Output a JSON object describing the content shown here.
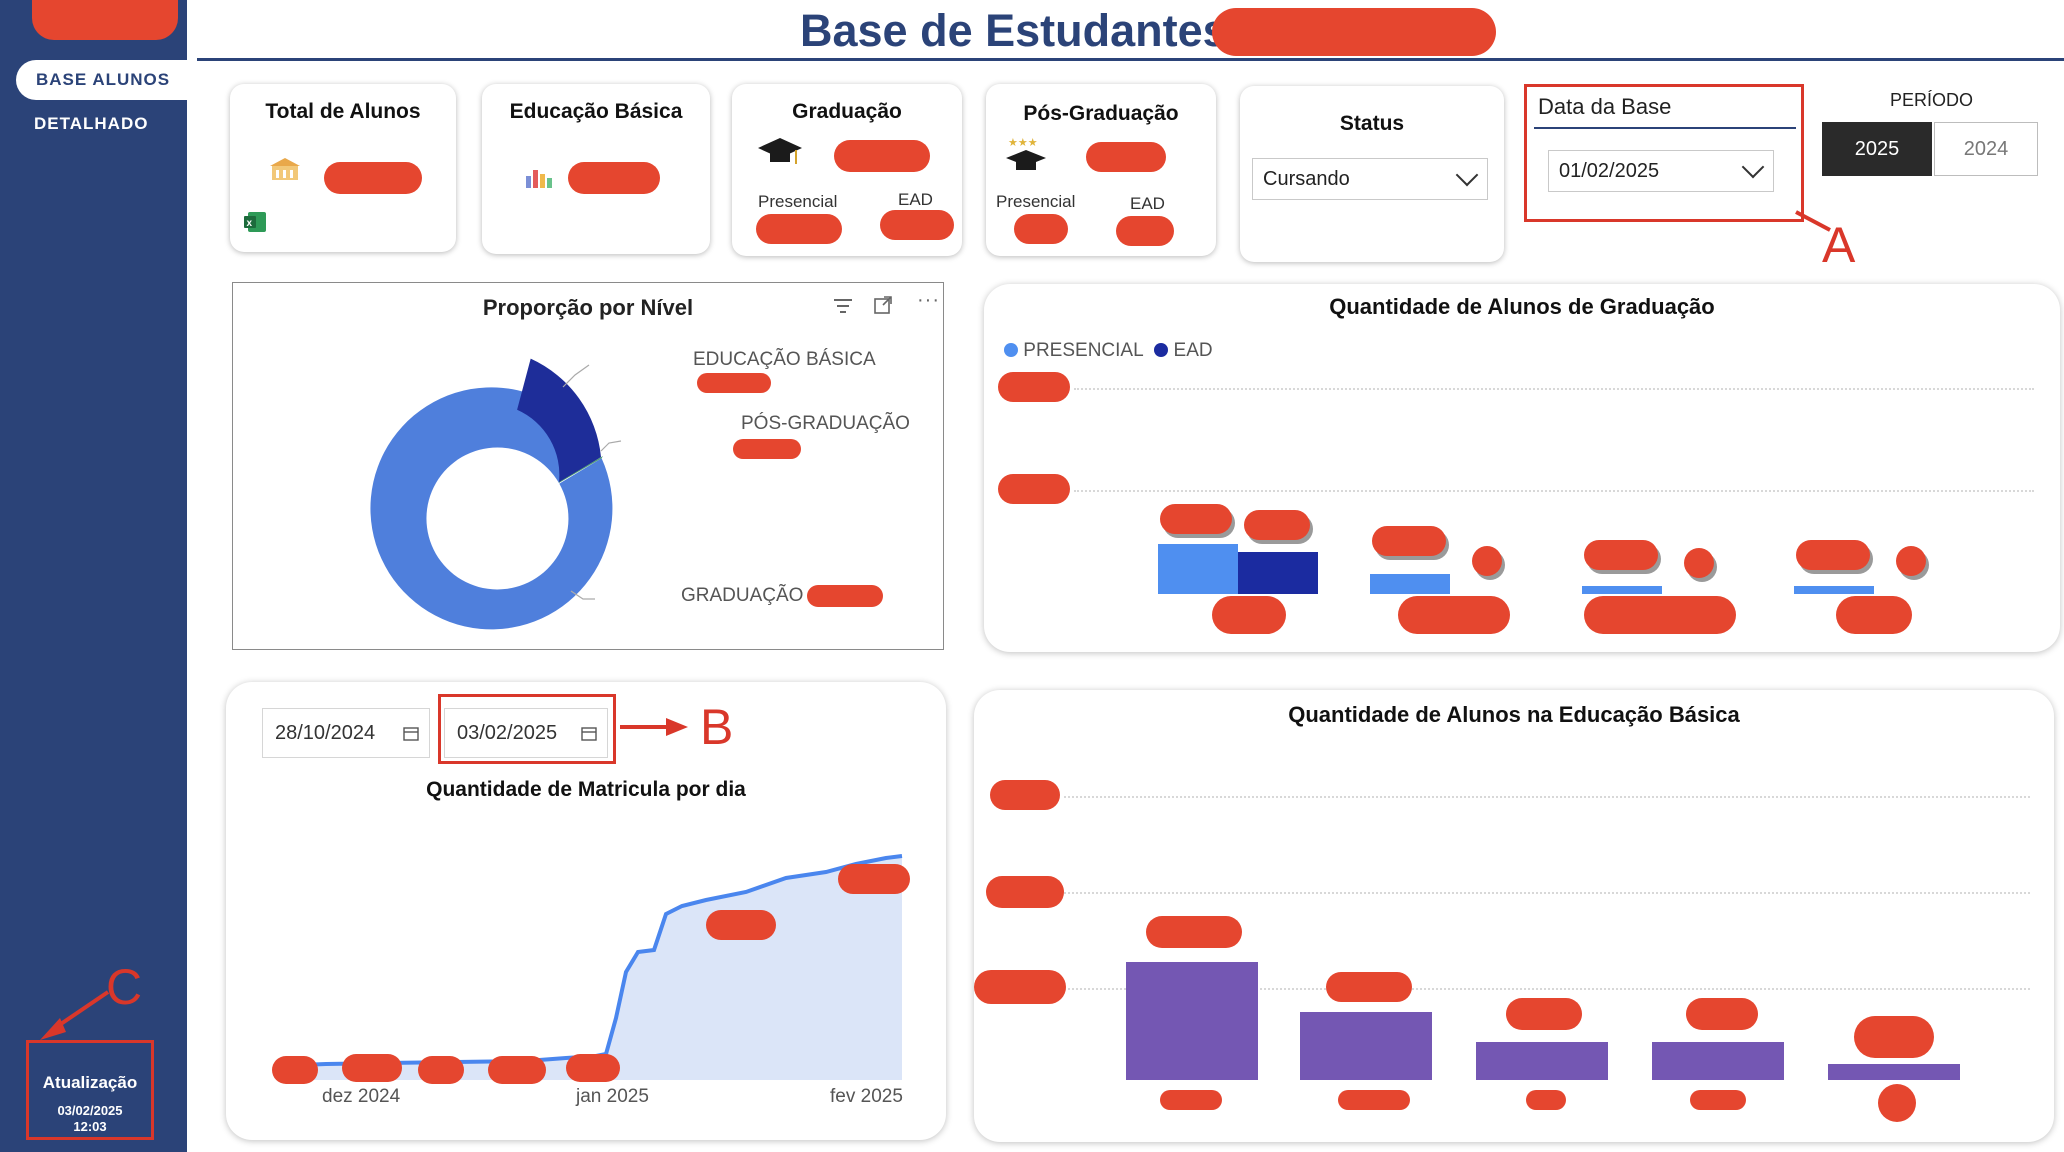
{
  "header": {
    "title": "Base de Estudantes"
  },
  "sidebar": {
    "items": [
      {
        "label": "BASE ALUNOS"
      },
      {
        "label": "DETALHADO"
      }
    ],
    "update": {
      "label": "Atualização",
      "date": "03/02/2025",
      "time": "12:03"
    }
  },
  "kpis": {
    "total": {
      "title": "Total de Alunos"
    },
    "basica": {
      "title": "Educação Básica"
    },
    "graduacao": {
      "title": "Graduação",
      "sub1": "Presencial",
      "sub2": "EAD"
    },
    "pos": {
      "title": "Pós-Graduação",
      "sub1": "Presencial",
      "sub2": "EAD"
    }
  },
  "filters": {
    "status": {
      "label": "Status",
      "value": "Cursando"
    },
    "data_base": {
      "label": "Data da Base",
      "value": "01/02/2025"
    },
    "periodo": {
      "label": "PERÍODO",
      "options": [
        "2025",
        "2024"
      ],
      "selected": "2025"
    }
  },
  "annotations": {
    "a": "A",
    "b": "B",
    "c": "C"
  },
  "donut": {
    "title": "Proporção por Nível",
    "labels": {
      "basica": "EDUCAÇÃO BÁSICA",
      "pos": "PÓS-GRADUAÇÃO",
      "grad": "GRADUAÇÃO &"
    },
    "colors": {
      "grad": "#4f7fdc",
      "basica": "#1e2d99",
      "pos": "#4e9a72"
    }
  },
  "grad_chart": {
    "title": "Quantidade de Alunos de Graduação",
    "legend": {
      "presencial": "PRESENCIAL",
      "ead": "EAD"
    },
    "colors": {
      "presencial": "#4f8ff0",
      "ead": "#1b2ba0"
    }
  },
  "matricula": {
    "title": "Quantidade de Matricula por dia",
    "date_from": "28/10/2024",
    "date_to": "03/02/2025",
    "x_ticks": [
      "dez 2024",
      "jan 2025",
      "fev 2025"
    ]
  },
  "basica_chart": {
    "title": "Quantidade de Alunos na Educação Básica",
    "color": "#7457b3"
  }
}
